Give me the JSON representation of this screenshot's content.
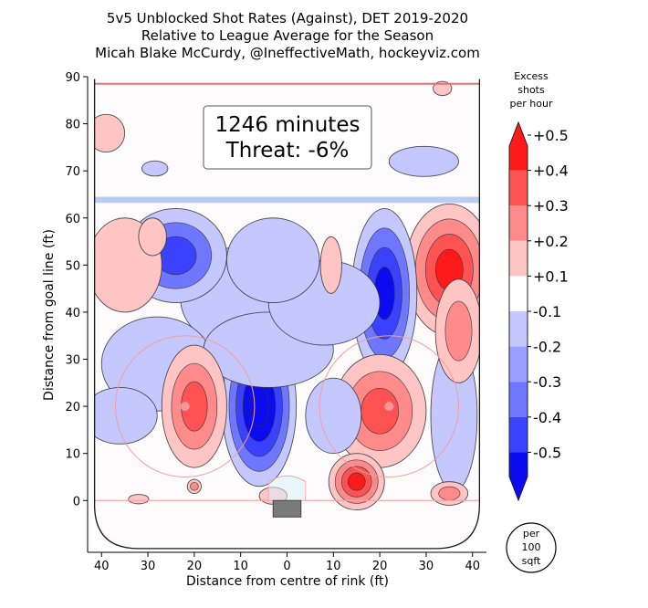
{
  "chart_data": {
    "type": "heatmap",
    "title_lines": [
      "5v5 Unblocked Shot Rates (Against), DET 2019-2020",
      "Relative to League Average for the Season",
      "Micah Blake McCurdy, @IneffectiveMath, hockeyviz.com"
    ],
    "xlabel": "Distance from centre of rink (ft)",
    "ylabel": "Distance from goal line (ft)",
    "x_ticks": [
      {
        "value": -40,
        "label": "40"
      },
      {
        "value": -30,
        "label": "30"
      },
      {
        "value": -20,
        "label": "20"
      },
      {
        "value": -10,
        "label": "10"
      },
      {
        "value": 0,
        "label": "0"
      },
      {
        "value": 10,
        "label": "10"
      },
      {
        "value": 20,
        "label": "20"
      },
      {
        "value": 30,
        "label": "30"
      },
      {
        "value": 40,
        "label": "40"
      }
    ],
    "y_ticks": [
      0,
      10,
      20,
      30,
      40,
      50,
      60,
      70,
      80,
      90
    ],
    "xlim": [
      -43,
      43
    ],
    "ylim": [
      -11,
      90
    ],
    "annotation": {
      "line1": "1246 minutes",
      "line2": "Threat: -6%"
    },
    "colorbar": {
      "title_lines": [
        "Excess",
        "shots",
        "per hour"
      ],
      "labels": [
        "+0.5",
        "+0.4",
        "+0.3",
        "+0.2",
        "+0.1",
        "-0.1",
        "-0.2",
        "-0.3",
        "-0.4",
        "-0.5"
      ],
      "band_colors": [
        "#ff1a1a",
        "#ff5252",
        "#ff8a8a",
        "#ffc4c4",
        "#ffffff",
        "#c4c8ff",
        "#9aa0ff",
        "#6f76ff",
        "#3a42ff",
        "#0b0bf0"
      ],
      "badge_lines": [
        "per",
        "100",
        "sqft"
      ]
    },
    "levels": [
      -0.5,
      -0.4,
      -0.3,
      -0.2,
      -0.1,
      0.1,
      0.2,
      0.3,
      0.4,
      0.5
    ],
    "regions": [
      {
        "x": -39,
        "y": 78,
        "rx": 4,
        "ry": 4,
        "v": 0.17
      },
      {
        "x": -28.5,
        "y": 70.5,
        "rx": 2.8,
        "ry": 1.6,
        "v": -0.12
      },
      {
        "x": 33.5,
        "y": 87.5,
        "rx": 2,
        "ry": 1.5,
        "v": 0.12
      },
      {
        "x": 29.5,
        "y": 72,
        "rx": 7.5,
        "ry": 3.2,
        "v": -0.15
      },
      {
        "x": -35,
        "y": 50,
        "rx": 8,
        "ry": 10,
        "v": 0.18
      },
      {
        "x": -29,
        "y": 56,
        "rx": 3,
        "ry": 4,
        "v": 0.15
      },
      {
        "x": -24,
        "y": 52,
        "rx": 11,
        "ry": 10,
        "v": -0.3
      },
      {
        "x": -9,
        "y": 43,
        "rx": 14,
        "ry": 11,
        "v": -0.12
      },
      {
        "x": -3,
        "y": 51,
        "rx": 10,
        "ry": 9,
        "v": -0.14
      },
      {
        "x": 8,
        "y": 42,
        "rx": 12,
        "ry": 9,
        "v": -0.12
      },
      {
        "x": 9.5,
        "y": 50,
        "rx": 2.3,
        "ry": 6,
        "v": 0.18
      },
      {
        "x": 21,
        "y": 44,
        "rx": 7,
        "ry": 18,
        "v": -0.42
      },
      {
        "x": 35,
        "y": 49,
        "rx": 9.5,
        "ry": 14,
        "v": 0.4
      },
      {
        "x": 37,
        "y": 36,
        "rx": 5,
        "ry": 11,
        "v": 0.22
      },
      {
        "x": -28,
        "y": 29,
        "rx": 12,
        "ry": 10,
        "v": -0.13
      },
      {
        "x": -20,
        "y": 20,
        "rx": 7,
        "ry": 13,
        "v": 0.3
      },
      {
        "x": -6,
        "y": 20,
        "rx": 8,
        "ry": 17,
        "v": -0.5
      },
      {
        "x": -4,
        "y": 32,
        "rx": 14,
        "ry": 8,
        "v": -0.14
      },
      {
        "x": -36,
        "y": 18,
        "rx": 8,
        "ry": 6,
        "v": -0.12
      },
      {
        "x": 20,
        "y": 19,
        "rx": 10,
        "ry": 12,
        "v": 0.32
      },
      {
        "x": 15,
        "y": 4,
        "rx": 6,
        "ry": 6,
        "v": 0.45
      },
      {
        "x": 36,
        "y": 18,
        "rx": 5,
        "ry": 16,
        "v": -0.13
      },
      {
        "x": 10,
        "y": 18,
        "rx": 6,
        "ry": 8,
        "v": -0.11
      },
      {
        "x": -32,
        "y": 0.3,
        "rx": 2.2,
        "ry": 1,
        "v": 0.15
      },
      {
        "x": -20,
        "y": 3,
        "rx": 1.5,
        "ry": 1.5,
        "v": 0.2
      },
      {
        "x": -3,
        "y": 1,
        "rx": 3,
        "ry": 1.8,
        "v": 0.18
      },
      {
        "x": 35,
        "y": 1.5,
        "rx": 4,
        "ry": 2.5,
        "v": 0.2
      }
    ]
  }
}
